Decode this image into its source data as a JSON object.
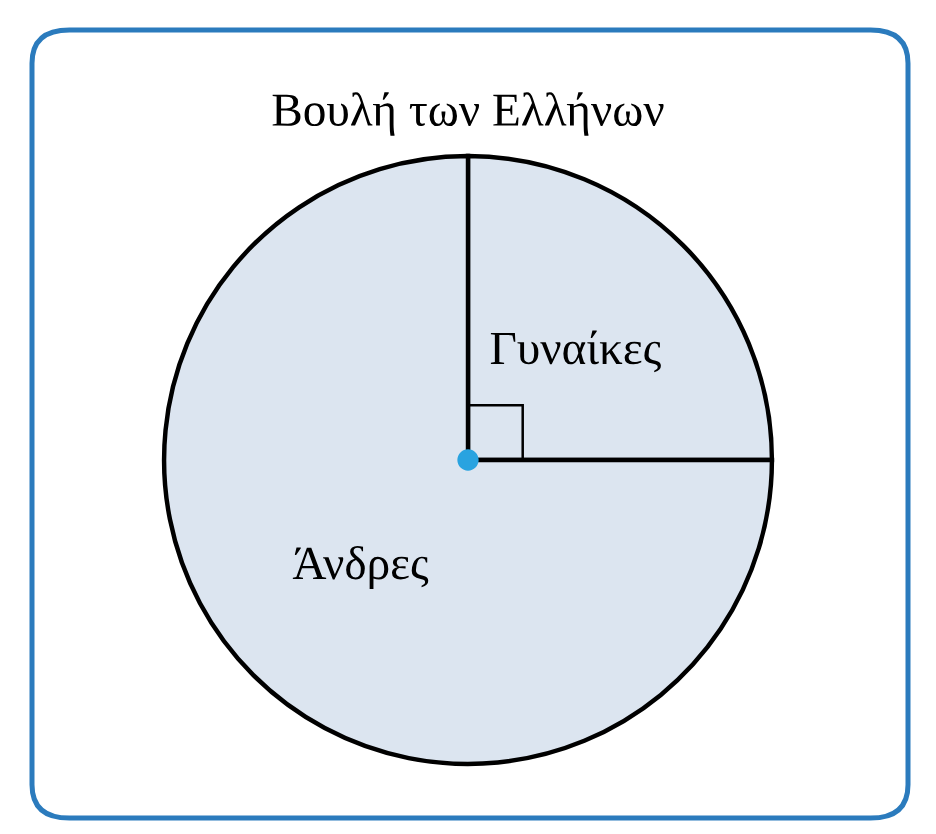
{
  "chart_data": {
    "type": "pie",
    "title": "Βουλή των Ελλήνων",
    "categories": [
      "Γυναίκες",
      "Άνδρες"
    ],
    "values": [
      25,
      75
    ],
    "colors": [
      "#dce5f0",
      "#dce5f0"
    ]
  }
}
